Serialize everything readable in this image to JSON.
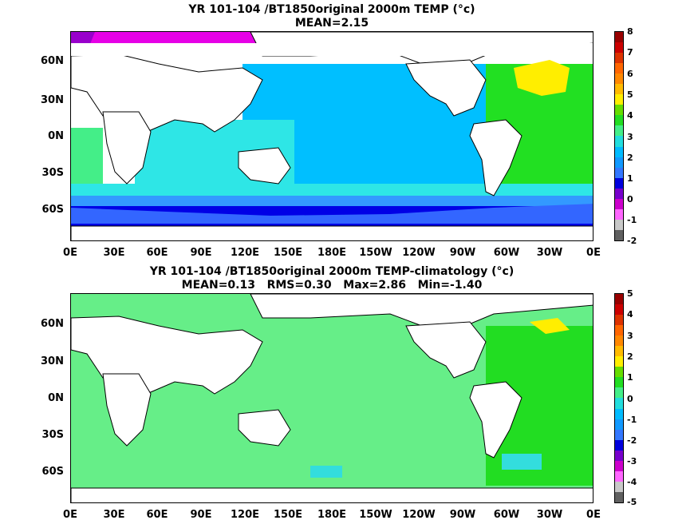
{
  "panel1": {
    "title": "YR 101-104 /BT1850original 2000m TEMP (°c)",
    "subtitle": "MEAN=2.15",
    "lat_labels": [
      "60N",
      "30N",
      "0N",
      "30S",
      "60S"
    ],
    "lon_labels": [
      "0E",
      "30E",
      "60E",
      "90E",
      "120E",
      "150E",
      "180E",
      "150W",
      "120W",
      "90W",
      "60W",
      "30W",
      "0E"
    ],
    "colorbar_labels": [
      "8",
      "7",
      "6",
      "5",
      "4",
      "3",
      "2",
      "1",
      "0",
      "-1",
      "-2"
    ],
    "colors": {
      "ocean_main": "#00bfff",
      "indian": "#2ee6e6",
      "atlantic": "#22e022",
      "southern": "#3399ff",
      "deep_south": "#0000e6",
      "arctic": "#e600e6",
      "na_warm": "#ffee00",
      "land": "#ffffff"
    }
  },
  "panel2": {
    "title": "YR 101-104 /BT1850original 2000m TEMP-climatology (°c)",
    "subtitle": "MEAN=0.13   RMS=0.30   Max=2.86   Min=-1.40",
    "lat_labels": [
      "60N",
      "30N",
      "0N",
      "30S",
      "60S"
    ],
    "lon_labels": [
      "0E",
      "30E",
      "60E",
      "90E",
      "120E",
      "150E",
      "180E",
      "150W",
      "120W",
      "90W",
      "60W",
      "30W",
      "0E"
    ],
    "colorbar_labels": [
      "5",
      "4",
      "3",
      "2",
      "1",
      "0",
      "-1",
      "-2",
      "-3",
      "-4",
      "-5"
    ],
    "colors": {
      "ocean_main": "#66ee88",
      "positive": "#22dd22",
      "negative": "#33dddd",
      "na_warm": "#ffee00",
      "land": "#ffffff"
    }
  },
  "colorbar_colors": [
    "#606060",
    "#c8c8c8",
    "#ff66ff",
    "#cc00cc",
    "#7700cc",
    "#0000dd",
    "#3377ff",
    "#1199ff",
    "#00bbff",
    "#22dddd",
    "#44ee88",
    "#22dd22",
    "#66dd00",
    "#ffee00",
    "#ffbb00",
    "#ff8800",
    "#ff6600",
    "#dd3300",
    "#cc0000",
    "#990000"
  ]
}
